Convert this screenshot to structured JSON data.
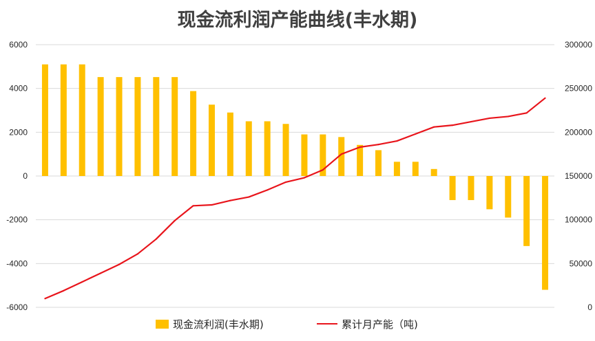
{
  "chart_data": {
    "type": "bar",
    "title": "现金流利润产能曲线(丰水期)",
    "colors": {
      "bar": "#FFC000",
      "line": "#E8141B",
      "grid": "#D9D9D9",
      "title": "#404040",
      "text": "#262626"
    },
    "left_axis": {
      "ylim": [
        -6000,
        6000
      ],
      "ticks": [
        "6000",
        "4000",
        "2000",
        "0",
        "-2000",
        "-4000",
        "-6000"
      ]
    },
    "right_axis": {
      "ylim": [
        0,
        300000
      ],
      "ticks": [
        "300000",
        "250000",
        "200000",
        "150000",
        "100000",
        "50000",
        "0"
      ]
    },
    "series": [
      {
        "name": "现金流利润(丰水期)",
        "type": "bar",
        "axis": "left",
        "values": [
          5100,
          5100,
          5100,
          4520,
          4520,
          4520,
          4520,
          4520,
          3880,
          3260,
          2900,
          2500,
          2500,
          2380,
          1900,
          1900,
          1780,
          1420,
          1180,
          650,
          650,
          320,
          -1100,
          -1100,
          -1520,
          -1900,
          -3200,
          -5200
        ]
      },
      {
        "name": "累计月产能（吨)",
        "type": "line",
        "axis": "right",
        "values": [
          10000,
          19000,
          29000,
          39000,
          49000,
          61000,
          78000,
          99000,
          116000,
          117000,
          122000,
          126000,
          134000,
          143000,
          148000,
          157000,
          175000,
          183000,
          186000,
          190000,
          198000,
          206000,
          208000,
          212000,
          216000,
          218000,
          222000,
          239000
        ]
      }
    ],
    "grid": true,
    "legend": "bottom"
  }
}
